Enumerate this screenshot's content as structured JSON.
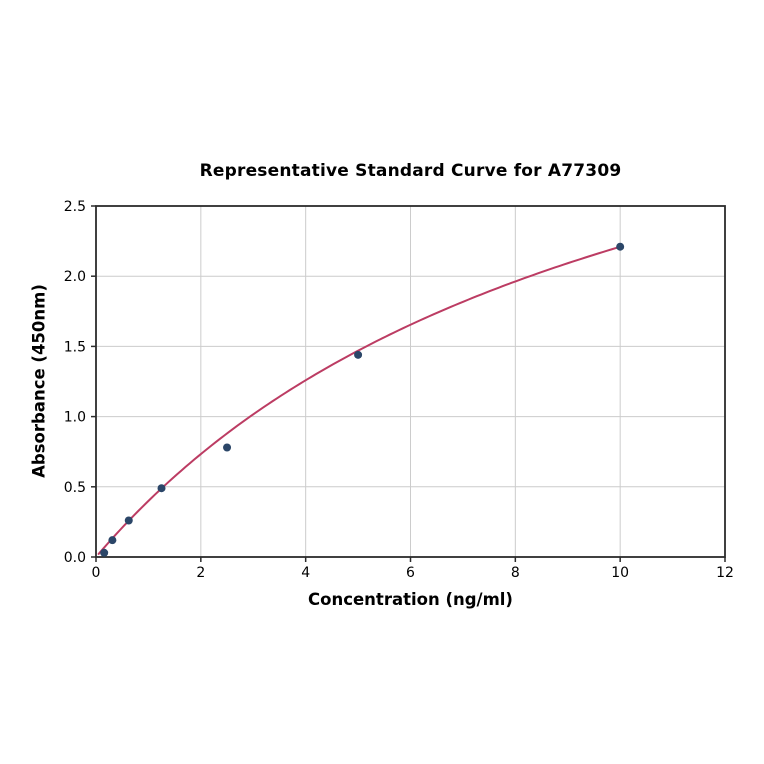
{
  "figure": {
    "background_color": "#ffffff"
  },
  "chart_data": {
    "type": "scatter",
    "title": "Representative Standard Curve for A77309",
    "xlabel": "Concentration (ng/ml)",
    "ylabel": "Absorbance (450nm)",
    "xlim": [
      0,
      12
    ],
    "ylim": [
      0,
      2.5
    ],
    "grid": true,
    "legend": "none",
    "x_ticks": [
      0,
      2,
      4,
      6,
      8,
      10,
      12
    ],
    "x_tick_labels": [
      "0",
      "2",
      "4",
      "6",
      "8",
      "10",
      "12"
    ],
    "y_ticks": [
      0.0,
      0.5,
      1.0,
      1.5,
      2.0,
      2.5
    ],
    "y_tick_labels": [
      "0.0",
      "0.5",
      "1.0",
      "1.5",
      "2.0",
      "2.5"
    ],
    "points": {
      "x": [
        0.156,
        0.3125,
        0.625,
        1.25,
        2.5,
        5,
        10
      ],
      "y": [
        0.03,
        0.12,
        0.26,
        0.49,
        0.78,
        1.44,
        2.21
      ]
    },
    "fit_curve": {
      "model": "y = a*x/(b+x)",
      "a": 4.45,
      "b": 10.14,
      "x_start": 0.05,
      "x_end": 10
    },
    "colors": {
      "curve": "#bc3c63",
      "marker": "#2b4668",
      "grid": "#cccccc",
      "frame": "#2b2b2b",
      "text": "#000000"
    }
  }
}
